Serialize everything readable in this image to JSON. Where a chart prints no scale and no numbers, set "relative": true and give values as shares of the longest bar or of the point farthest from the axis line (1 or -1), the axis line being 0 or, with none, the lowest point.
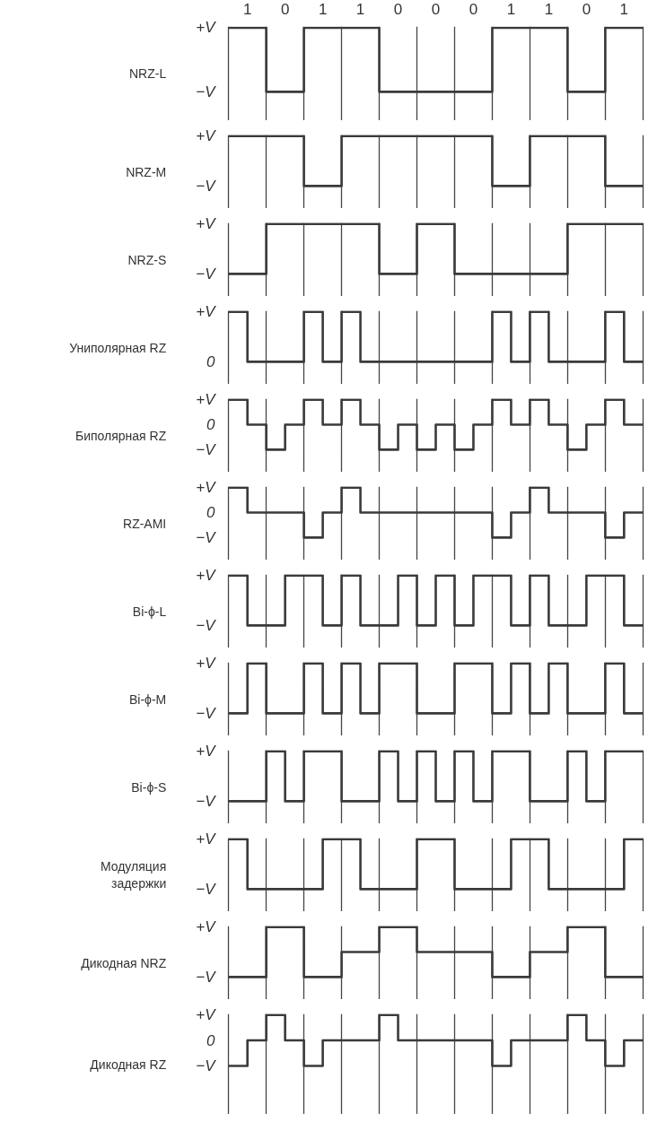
{
  "chart_data": [
    {
      "type": "step",
      "ylabel": "NRZ-L",
      "relative": true,
      "categories": [
        null,
        "1",
        null,
        "0",
        null,
        "1",
        null,
        "1",
        null,
        "0",
        null,
        "0",
        null,
        "0",
        null,
        "1",
        null,
        "1",
        null,
        "0",
        null,
        "1",
        null
      ],
      "annotations": [
        "+V",
        "−V"
      ],
      "grid": "x",
      "series": [
        {
          "color": "#3a3a3a",
          "values": [
            1,
            1,
            0,
            0,
            1,
            1,
            1,
            1,
            0,
            0,
            0,
            0,
            0,
            0,
            1,
            1,
            1,
            1,
            0,
            0,
            1,
            1,
            1
          ]
        }
      ]
    },
    {
      "type": "step",
      "ylabel": "NRZ-M",
      "relative": true,
      "categories": [
        null,
        null,
        null,
        null,
        null,
        null,
        null,
        null,
        null,
        null,
        null,
        null,
        null,
        null,
        null,
        null,
        null,
        null,
        null,
        null,
        null,
        null,
        null
      ],
      "annotations": [
        "+V",
        "−V"
      ],
      "grid": "x",
      "tick_labels": false,
      "series": [
        {
          "color": "#3a3a3a",
          "values": [
            1,
            1,
            1,
            1,
            0,
            0,
            1,
            1,
            1,
            1,
            1,
            1,
            1,
            1,
            0,
            0,
            1,
            1,
            1,
            1,
            0,
            0,
            0
          ]
        }
      ]
    },
    {
      "type": "step",
      "ylabel": "NRZ-S",
      "relative": true,
      "categories": [
        null,
        null,
        null,
        null,
        null,
        null,
        null,
        null,
        null,
        null,
        null,
        null,
        null,
        null,
        null,
        null,
        null,
        null,
        null,
        null,
        null,
        null,
        null
      ],
      "annotations": [
        "+V",
        "−V"
      ],
      "grid": "x",
      "tick_labels": false,
      "series": [
        {
          "color": "#3a3a3a",
          "values": [
            0,
            0,
            1,
            1,
            1,
            1,
            1,
            1,
            0,
            0,
            1,
            1,
            0,
            0,
            0,
            0,
            0,
            0,
            1,
            1,
            1,
            1,
            1
          ]
        }
      ]
    },
    {
      "type": "step",
      "ylabel": "Униполярная RZ",
      "relative": true,
      "categories": [
        null,
        null,
        null,
        null,
        null,
        null,
        null,
        null,
        null,
        null,
        null,
        null,
        null,
        null,
        null,
        null,
        null,
        null,
        null,
        null,
        null,
        null,
        null
      ],
      "annotations": [
        "+V",
        "0"
      ],
      "grid": "x",
      "tick_labels": false,
      "series": [
        {
          "color": "#3a3a3a",
          "values": [
            1,
            0,
            0,
            0,
            1,
            0,
            1,
            0,
            0,
            0,
            0,
            0,
            0,
            0,
            1,
            0,
            1,
            0,
            0,
            0,
            1,
            0,
            0
          ]
        }
      ]
    },
    {
      "type": "step",
      "ylabel": "Биполярная RZ",
      "relative": true,
      "categories": [
        null,
        null,
        null,
        null,
        null,
        null,
        null,
        null,
        null,
        null,
        null,
        null,
        null,
        null,
        null,
        null,
        null,
        null,
        null,
        null,
        null,
        null,
        null
      ],
      "annotations": [
        "+V",
        "0",
        "−V"
      ],
      "grid": "x",
      "tick_labels": false,
      "series": [
        {
          "color": "#3a3a3a",
          "values": [
            1,
            0.5,
            0,
            0.5,
            1,
            0.5,
            1,
            0.5,
            0,
            0.5,
            0,
            0.5,
            0,
            0.5,
            1,
            0.5,
            1,
            0.5,
            0,
            0.5,
            1,
            0.5,
            0.5
          ]
        }
      ]
    },
    {
      "type": "step",
      "ylabel": "RZ-AMI",
      "relative": true,
      "categories": [
        null,
        null,
        null,
        null,
        null,
        null,
        null,
        null,
        null,
        null,
        null,
        null,
        null,
        null,
        null,
        null,
        null,
        null,
        null,
        null,
        null,
        null,
        null
      ],
      "annotations": [
        "+V",
        "0",
        "−V"
      ],
      "grid": "x",
      "tick_labels": false,
      "series": [
        {
          "color": "#3a3a3a",
          "values": [
            1,
            0.5,
            0.5,
            0.5,
            0,
            0.5,
            1,
            0.5,
            0.5,
            0.5,
            0.5,
            0.5,
            0.5,
            0.5,
            0,
            0.5,
            1,
            0.5,
            0.5,
            0.5,
            0,
            0.5,
            0.5
          ]
        }
      ]
    },
    {
      "type": "step",
      "ylabel": "Bi-ϕ-L",
      "relative": true,
      "categories": [
        null,
        null,
        null,
        null,
        null,
        null,
        null,
        null,
        null,
        null,
        null,
        null,
        null,
        null,
        null,
        null,
        null,
        null,
        null,
        null,
        null,
        null,
        null
      ],
      "annotations": [
        "+V",
        "−V"
      ],
      "grid": "x",
      "tick_labels": false,
      "series": [
        {
          "color": "#3a3a3a",
          "values": [
            1,
            0,
            0,
            1,
            1,
            0,
            1,
            0,
            0,
            1,
            0,
            1,
            0,
            1,
            1,
            0,
            1,
            0,
            0,
            1,
            1,
            0,
            0
          ]
        }
      ]
    },
    {
      "type": "step",
      "ylabel": "Bi-ϕ-M",
      "relative": true,
      "categories": [
        null,
        null,
        null,
        null,
        null,
        null,
        null,
        null,
        null,
        null,
        null,
        null,
        null,
        null,
        null,
        null,
        null,
        null,
        null,
        null,
        null,
        null,
        null
      ],
      "annotations": [
        "+V",
        "−V"
      ],
      "grid": "x",
      "tick_labels": false,
      "series": [
        {
          "color": "#3a3a3a",
          "values": [
            0,
            1,
            0,
            0,
            1,
            0,
            1,
            0,
            1,
            1,
            0,
            0,
            1,
            1,
            0,
            1,
            0,
            1,
            0,
            0,
            1,
            0,
            0
          ]
        }
      ]
    },
    {
      "type": "step",
      "ylabel": "Bi-ϕ-S",
      "relative": true,
      "categories": [
        null,
        null,
        null,
        null,
        null,
        null,
        null,
        null,
        null,
        null,
        null,
        null,
        null,
        null,
        null,
        null,
        null,
        null,
        null,
        null,
        null,
        null,
        null
      ],
      "annotations": [
        "+V",
        "−V"
      ],
      "grid": "x",
      "tick_labels": false,
      "series": [
        {
          "color": "#3a3a3a",
          "values": [
            0,
            0,
            1,
            0,
            1,
            1,
            0,
            0,
            1,
            0,
            1,
            0,
            1,
            0,
            1,
            1,
            0,
            0,
            1,
            0,
            1,
            1,
            1
          ]
        }
      ]
    },
    {
      "type": "step",
      "ylabel": "Модуляция\nзадержки",
      "relative": true,
      "categories": [
        null,
        null,
        null,
        null,
        null,
        null,
        null,
        null,
        null,
        null,
        null,
        null,
        null,
        null,
        null,
        null,
        null,
        null,
        null,
        null,
        null,
        null,
        null
      ],
      "annotations": [
        "+V",
        "−V"
      ],
      "grid": "x",
      "tick_labels": false,
      "series": [
        {
          "color": "#3a3a3a",
          "values": [
            1,
            0,
            0,
            0,
            0,
            1,
            1,
            0,
            0,
            0,
            1,
            1,
            0,
            0,
            0,
            1,
            1,
            0,
            0,
            0,
            0,
            1,
            1
          ]
        }
      ]
    },
    {
      "type": "step",
      "ylabel": "Дикодная NRZ",
      "relative": true,
      "categories": [
        null,
        null,
        null,
        null,
        null,
        null,
        null,
        null,
        null,
        null,
        null,
        null,
        null,
        null,
        null,
        null,
        null,
        null,
        null,
        null,
        null,
        null,
        null
      ],
      "annotations": [
        "+V",
        "−V"
      ],
      "grid": "x",
      "tick_labels": false,
      "series": [
        {
          "color": "#3a3a3a",
          "values": [
            0,
            0,
            1,
            1,
            0,
            0,
            0.5,
            0.5,
            1,
            1,
            0.5,
            0.5,
            0.5,
            0.5,
            0,
            0,
            0.5,
            0.5,
            1,
            1,
            0,
            0,
            0
          ]
        }
      ]
    },
    {
      "type": "step",
      "ylabel": "Дикодная RZ",
      "relative": true,
      "categories": [
        null,
        null,
        null,
        null,
        null,
        null,
        null,
        null,
        null,
        null,
        null,
        null,
        null,
        null,
        null,
        null,
        null,
        null,
        null,
        null,
        null,
        null,
        null
      ],
      "annotations": [
        "+V",
        "0",
        "−V"
      ],
      "grid": "x",
      "tick_labels": false,
      "series": [
        {
          "color": "#3a3a3a",
          "values": [
            0,
            0.5,
            1,
            0.5,
            0,
            0.5,
            0.5,
            0.5,
            1,
            0.5,
            0.5,
            0.5,
            0.5,
            0.5,
            0,
            0.5,
            0.5,
            0.5,
            1,
            0.5,
            0,
            0.5,
            0.5
          ]
        }
      ]
    }
  ]
}
